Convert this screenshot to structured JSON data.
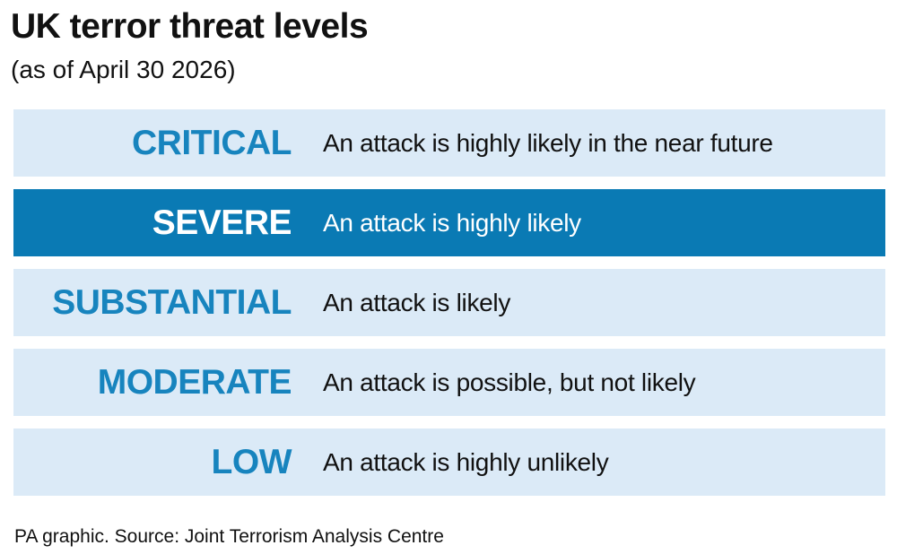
{
  "header": {
    "title": "UK terror threat levels",
    "subtitle": "(as of April 30 2026)"
  },
  "levels": [
    {
      "name": "CRITICAL",
      "description": "An attack is highly likely in the near future",
      "highlighted": false
    },
    {
      "name": "SEVERE",
      "description": "An attack is highly likely",
      "highlighted": true
    },
    {
      "name": "SUBSTANTIAL",
      "description": "An attack is likely",
      "highlighted": false
    },
    {
      "name": "MODERATE",
      "description": "An attack is possible, but not likely",
      "highlighted": false
    },
    {
      "name": "LOW",
      "description": "An attack is highly unlikely",
      "highlighted": false
    }
  ],
  "footer": {
    "source": "PA graphic. Source: Joint Terrorism Analysis Centre"
  }
}
